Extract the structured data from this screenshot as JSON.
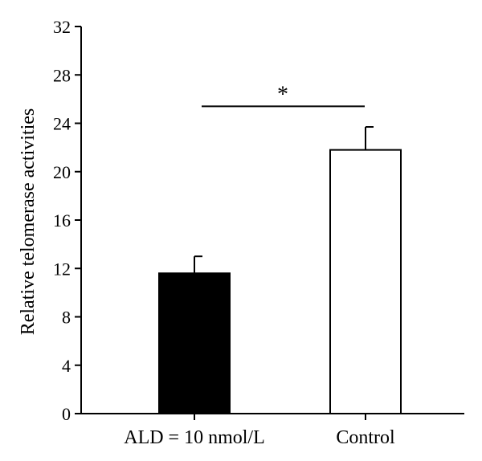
{
  "chart_data": {
    "type": "bar",
    "categories": [
      "ALD = 10 nmol/L",
      "Control"
    ],
    "values": [
      11.6,
      21.8
    ],
    "errors": [
      1.4,
      1.9
    ],
    "bar_fills": [
      "#000000",
      "#ffffff"
    ],
    "xlabel": "",
    "ylabel": "Relative telomerase activities",
    "ylim": [
      0,
      32
    ],
    "yticks": [
      "0",
      "4",
      "8",
      "12",
      "16",
      "20",
      "24",
      "28",
      "32"
    ],
    "significance": {
      "label": "*",
      "between": [
        0,
        1
      ],
      "y": 25.4
    },
    "grid": false,
    "legend": "none"
  }
}
